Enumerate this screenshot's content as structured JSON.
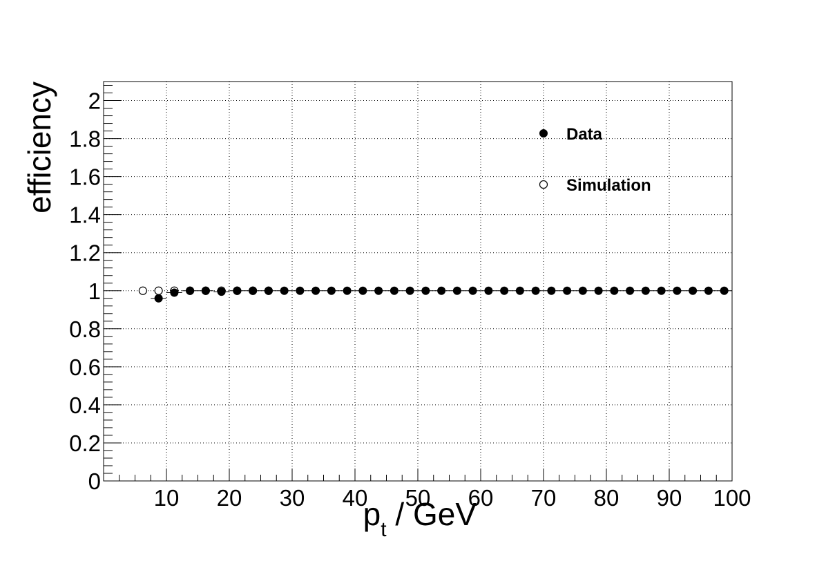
{
  "chart_data": {
    "type": "scatter",
    "title": "",
    "xlabel_main": "p",
    "xlabel_sub": "t",
    "xlabel_rest": " / GeV",
    "ylabel": "efficiency",
    "xlim": [
      0,
      100
    ],
    "ylim": [
      0,
      2.1
    ],
    "xticks": [
      10,
      20,
      30,
      40,
      50,
      60,
      70,
      80,
      90,
      100
    ],
    "xtick_labels": [
      "10",
      "20",
      "30",
      "40",
      "50",
      "60",
      "70",
      "80",
      "90",
      "100"
    ],
    "yticks": [
      0,
      0.2,
      0.4,
      0.6,
      0.8,
      1,
      1.2,
      1.4,
      1.6,
      1.8,
      2
    ],
    "ytick_labels": [
      "0",
      "0.2",
      "0.4",
      "0.6",
      "0.8",
      "1",
      "1.2",
      "1.4",
      "1.6",
      "1.8",
      "2"
    ],
    "grid": true,
    "legend_position": "top-right",
    "series": [
      {
        "name": "Data",
        "marker": "filled-circle",
        "x": [
          8.75,
          11.25,
          13.75,
          16.25,
          18.75,
          21.25,
          23.75,
          26.25,
          28.75,
          31.25,
          33.75,
          36.25,
          38.75,
          41.25,
          43.75,
          46.25,
          48.75,
          51.25,
          53.75,
          56.25,
          58.75,
          61.25,
          63.75,
          66.25,
          68.75,
          71.25,
          73.75,
          76.25,
          78.75,
          81.25,
          83.75,
          86.25,
          88.75,
          91.25,
          93.75,
          96.25,
          98.75
        ],
        "y": [
          0.96,
          0.99,
          1.0,
          1.0,
          0.995,
          1.0,
          1.0,
          1.0,
          1.0,
          1.0,
          1.0,
          1.0,
          1.0,
          1.0,
          1.0,
          1.0,
          1.0,
          1.0,
          1.0,
          1.0,
          1.0,
          1.0,
          1.0,
          1.0,
          1.0,
          1.0,
          1.0,
          1.0,
          1.0,
          1.0,
          1.0,
          1.0,
          1.0,
          1.0,
          1.0,
          1.0,
          1.0
        ]
      },
      {
        "name": "Simulation",
        "marker": "open-circle",
        "x": [
          6.25,
          8.75,
          11.25,
          13.75,
          16.25,
          18.75,
          21.25,
          23.75,
          26.25
        ],
        "y": [
          1.0,
          1.0,
          1.0,
          1.0,
          1.0,
          1.0,
          1.0,
          1.0,
          1.0
        ]
      }
    ]
  }
}
